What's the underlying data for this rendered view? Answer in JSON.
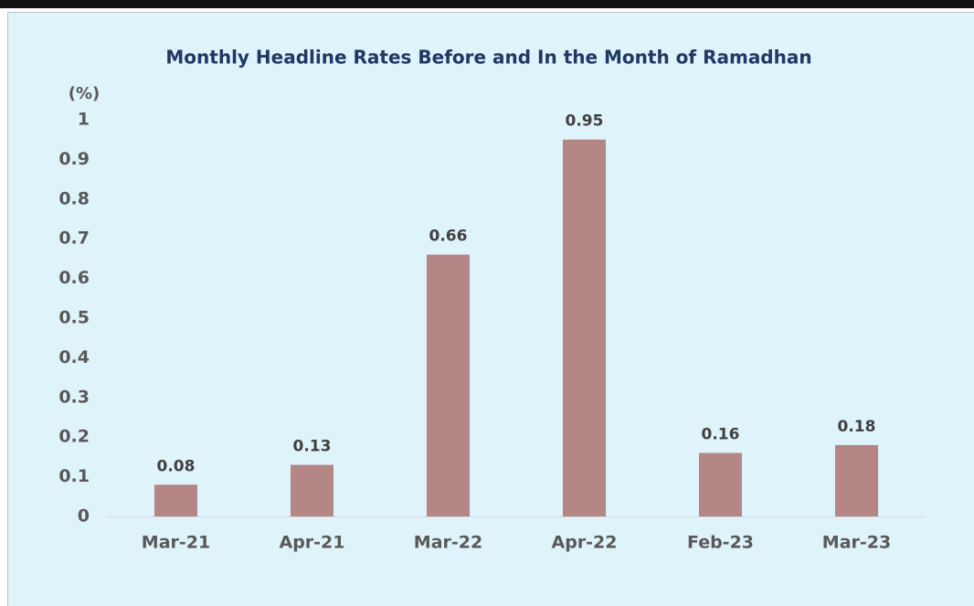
{
  "chart_data": {
    "type": "bar",
    "title": "Monthly Headline Rates Before and In the Month of Ramadhan",
    "y_label": "(%)",
    "categories": [
      "Mar-21",
      "Apr-21",
      "Mar-22",
      "Apr-22",
      "Feb-23",
      "Mar-23"
    ],
    "values": [
      0.08,
      0.13,
      0.66,
      0.95,
      0.16,
      0.18
    ],
    "color": "#b48686",
    "ylim": [
      0,
      1
    ],
    "yticks": [
      0,
      0.1,
      0.2,
      0.3,
      0.4,
      0.5,
      0.6,
      0.7,
      0.8,
      0.9,
      1
    ],
    "grid": false
  }
}
